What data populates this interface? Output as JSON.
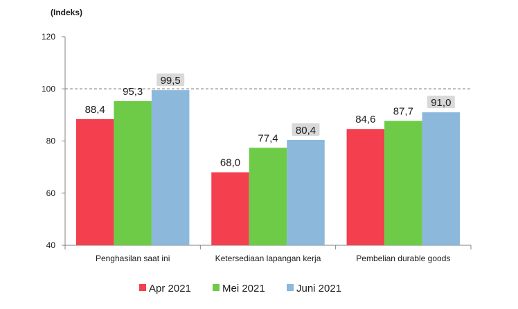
{
  "chart_data": {
    "type": "bar",
    "ylabel": "(Indeks)",
    "ylim": [
      40,
      120
    ],
    "yticks": [
      40,
      60,
      80,
      100,
      120
    ],
    "reference_line": 100,
    "categories": [
      "Penghasilan saat ini",
      "Ketersediaan lapangan kerja",
      "Pembelian durable goods"
    ],
    "series": [
      {
        "name": "Apr 2021",
        "color": "#f43f4f",
        "values": [
          88.4,
          68.0,
          84.6
        ],
        "labels": [
          "88,4",
          "68,0",
          "84,6"
        ],
        "highlight": false
      },
      {
        "name": "Mei 2021",
        "color": "#6ecb48",
        "values": [
          95.3,
          77.4,
          87.7
        ],
        "labels": [
          "95,3",
          "77,4",
          "87,7"
        ],
        "highlight": false
      },
      {
        "name": "Juni 2021",
        "color": "#8cb8dc",
        "values": [
          99.5,
          80.4,
          91.0
        ],
        "labels": [
          "99,5",
          "80,4",
          "91,0"
        ],
        "highlight": true
      }
    ],
    "legend_position": "bottom",
    "highlight_color": "#d9d9d9"
  }
}
